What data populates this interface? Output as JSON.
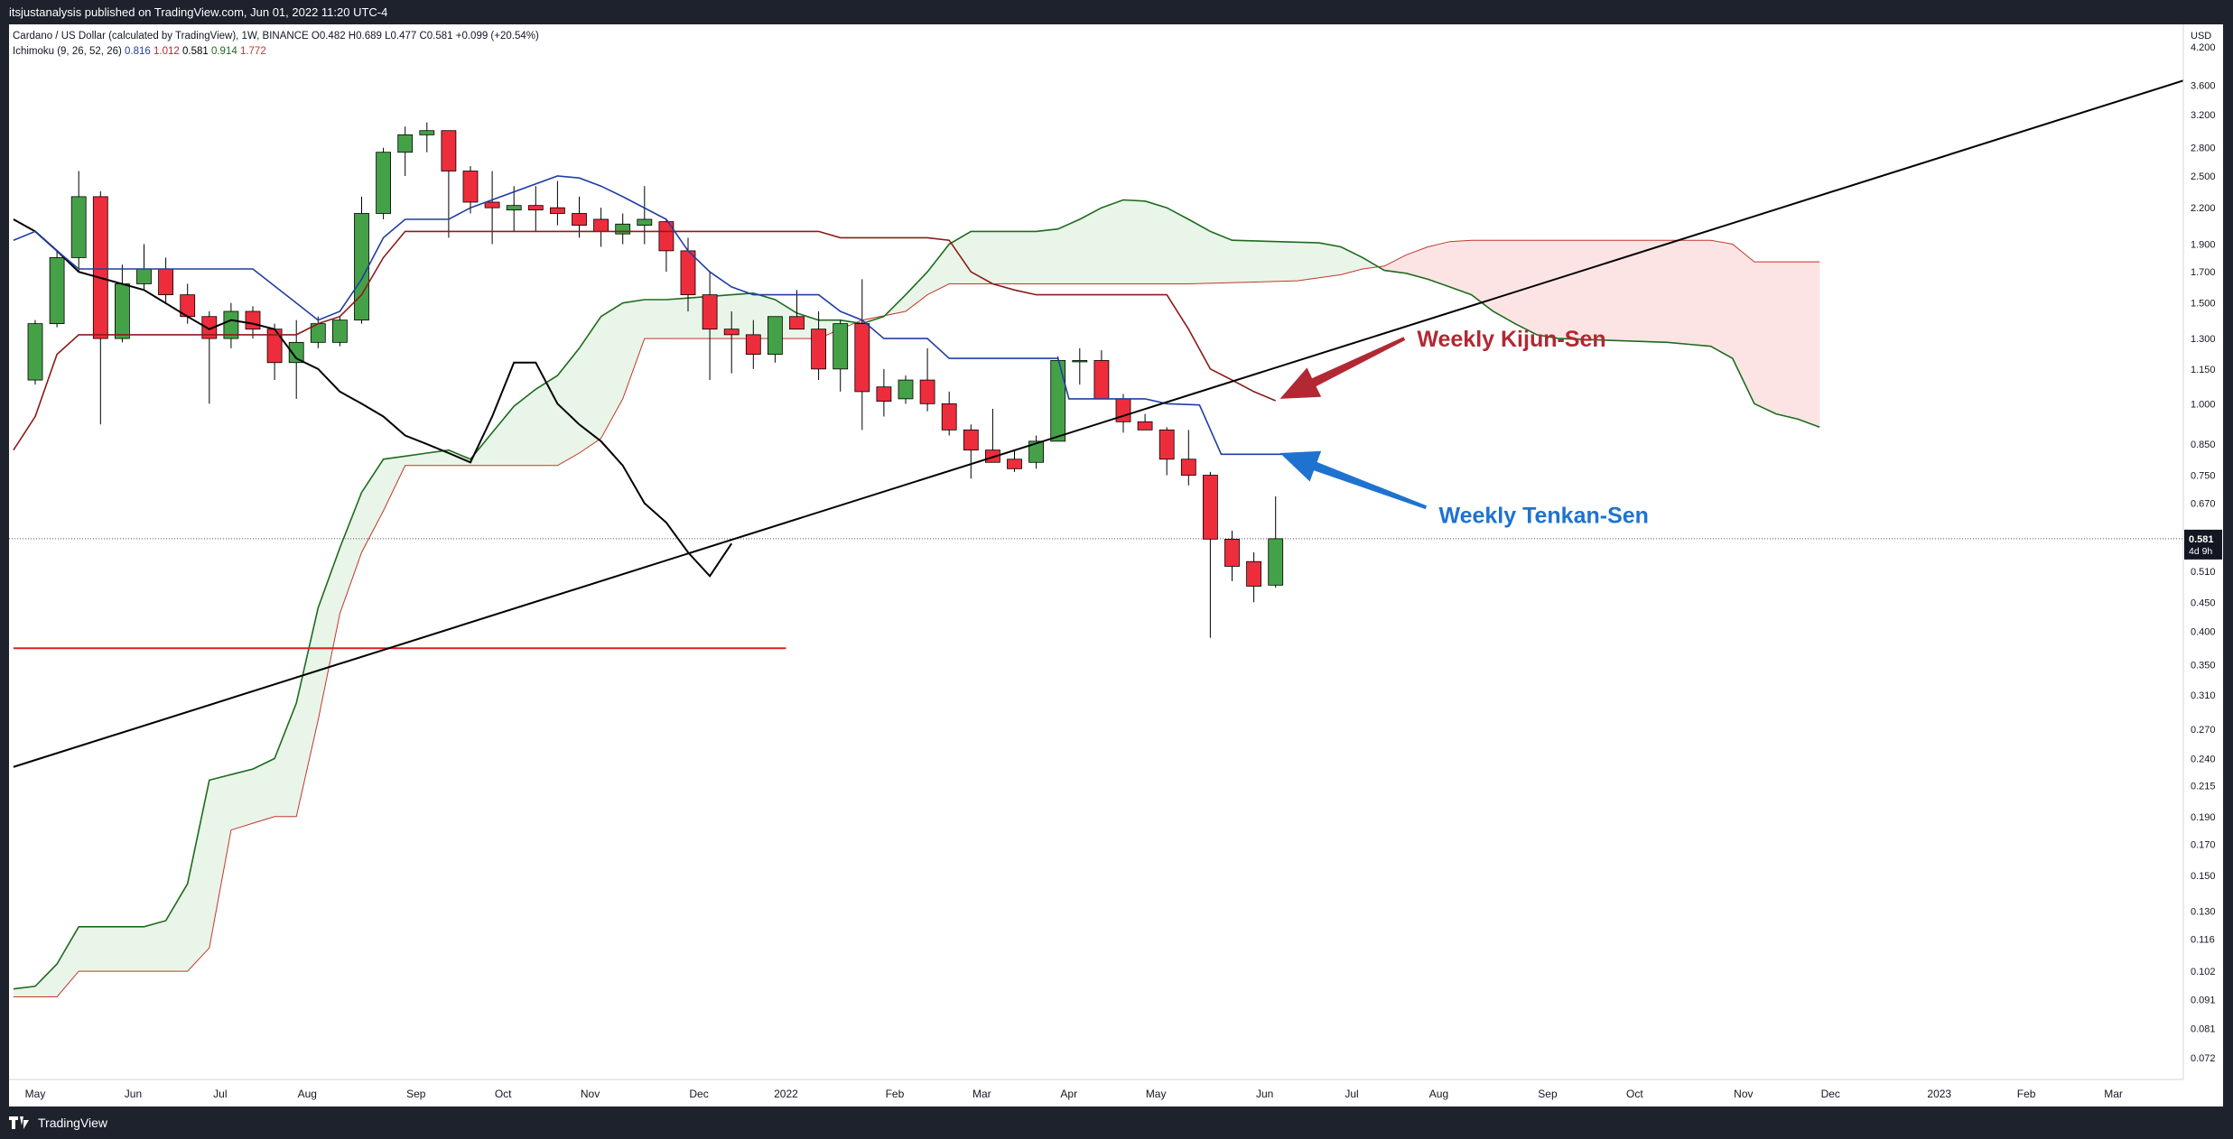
{
  "header": {
    "published_text": "itsjustanalysis published on TradingView.com, Jun 01, 2022 11:20 UTC-4"
  },
  "legend": {
    "symbol_line": "Cardano / US Dollar (calculated by TradingView), 1W, BINANCE",
    "ohlc": [
      {
        "label": "O",
        "value": "0.482"
      },
      {
        "label": "H",
        "value": "0.689"
      },
      {
        "label": "L",
        "value": "0.477"
      },
      {
        "label": "C",
        "value": "0.581"
      }
    ],
    "change": "+0.099 (+20.54%)",
    "indicator_name": "Ichimoku (9, 26, 52, 26)",
    "indicator_values": [
      {
        "value": "0.816",
        "color": "#1f3ea3"
      },
      {
        "value": "1.012",
        "color": "#b22833"
      },
      {
        "value": "0.581",
        "color": "#000000"
      },
      {
        "value": "0.914",
        "color": "#1e6b1e"
      },
      {
        "value": "1.772",
        "color": "#c0392b"
      }
    ]
  },
  "footer": {
    "brand": "TradingView"
  },
  "chart_data": {
    "type": "candlestick",
    "symbol": "Cardano / US Dollar",
    "interval": "1W",
    "exchange": "BINANCE",
    "currency_label": "USD",
    "y_scale": "log",
    "ylim": [
      0.066,
      4.6
    ],
    "price_ticks": [
      "4.200",
      "3.600",
      "3.200",
      "2.800",
      "2.500",
      "2.200",
      "1.900",
      "1.700",
      "1.500",
      "1.300",
      "1.150",
      "1.000",
      "0.850",
      "0.750",
      "0.670",
      "0.581",
      "0.510",
      "0.450",
      "0.400",
      "0.350",
      "0.310",
      "0.270",
      "0.240",
      "0.215",
      "0.190",
      "0.170",
      "0.150",
      "0.130",
      "0.116",
      "0.102",
      "0.091",
      "0.081",
      "0.072"
    ],
    "current_price": "0.581",
    "current_price_countdown": "4d 9h",
    "time_labels": [
      {
        "label": "May",
        "week": 0
      },
      {
        "label": "Jun",
        "week": 4.5
      },
      {
        "label": "Jul",
        "week": 8.5
      },
      {
        "label": "Aug",
        "week": 12.5
      },
      {
        "label": "Sep",
        "week": 17.5
      },
      {
        "label": "Oct",
        "week": 21.5
      },
      {
        "label": "Nov",
        "week": 25.5
      },
      {
        "label": "Dec",
        "week": 30.5
      },
      {
        "label": "2022",
        "week": 34.5
      },
      {
        "label": "Feb",
        "week": 39.5
      },
      {
        "label": "Mar",
        "week": 43.5
      },
      {
        "label": "Apr",
        "week": 47.5
      },
      {
        "label": "May",
        "week": 51.5
      },
      {
        "label": "Jun",
        "week": 56.5
      },
      {
        "label": "Jul",
        "week": 60.5
      },
      {
        "label": "Aug",
        "week": 64.5
      },
      {
        "label": "Sep",
        "week": 69.5
      },
      {
        "label": "Oct",
        "week": 73.5
      },
      {
        "label": "Nov",
        "week": 78.5
      },
      {
        "label": "Dec",
        "week": 82.5
      },
      {
        "label": "2023",
        "week": 87.5
      },
      {
        "label": "Feb",
        "week": 91.5
      },
      {
        "label": "Mar",
        "week": 95.5
      }
    ],
    "candles": [
      {
        "w": 0,
        "o": 1.1,
        "h": 1.4,
        "l": 1.08,
        "c": 1.38
      },
      {
        "w": 1,
        "o": 1.38,
        "h": 1.85,
        "l": 1.36,
        "c": 1.8
      },
      {
        "w": 2,
        "o": 1.8,
        "h": 2.55,
        "l": 1.7,
        "c": 2.3
      },
      {
        "w": 3,
        "o": 2.3,
        "h": 2.35,
        "l": 0.92,
        "c": 1.3
      },
      {
        "w": 4,
        "o": 1.3,
        "h": 1.75,
        "l": 1.28,
        "c": 1.62
      },
      {
        "w": 5,
        "o": 1.62,
        "h": 1.9,
        "l": 1.58,
        "c": 1.72
      },
      {
        "w": 6,
        "o": 1.72,
        "h": 1.8,
        "l": 1.5,
        "c": 1.55
      },
      {
        "w": 7,
        "o": 1.55,
        "h": 1.62,
        "l": 1.38,
        "c": 1.42
      },
      {
        "w": 8,
        "o": 1.42,
        "h": 1.45,
        "l": 1.0,
        "c": 1.3
      },
      {
        "w": 9,
        "o": 1.3,
        "h": 1.5,
        "l": 1.25,
        "c": 1.45
      },
      {
        "w": 10,
        "o": 1.45,
        "h": 1.48,
        "l": 1.3,
        "c": 1.35
      },
      {
        "w": 11,
        "o": 1.35,
        "h": 1.38,
        "l": 1.1,
        "c": 1.18
      },
      {
        "w": 12,
        "o": 1.18,
        "h": 1.4,
        "l": 1.02,
        "c": 1.28
      },
      {
        "w": 13,
        "o": 1.28,
        "h": 1.42,
        "l": 1.25,
        "c": 1.38
      },
      {
        "w": 14,
        "o": 1.28,
        "h": 1.42,
        "l": 1.26,
        "c": 1.4
      },
      {
        "w": 15,
        "o": 1.4,
        "h": 2.3,
        "l": 1.38,
        "c": 2.15
      },
      {
        "w": 16,
        "o": 2.15,
        "h": 2.8,
        "l": 2.1,
        "c": 2.75
      },
      {
        "w": 17,
        "o": 2.75,
        "h": 3.05,
        "l": 2.5,
        "c": 2.95
      },
      {
        "w": 18,
        "o": 2.95,
        "h": 3.1,
        "l": 2.75,
        "c": 3.0
      },
      {
        "w": 19,
        "o": 3.0,
        "h": 3.0,
        "l": 1.95,
        "c": 2.55
      },
      {
        "w": 20,
        "o": 2.55,
        "h": 2.6,
        "l": 2.15,
        "c": 2.25
      },
      {
        "w": 21,
        "o": 2.25,
        "h": 2.55,
        "l": 1.9,
        "c": 2.2
      },
      {
        "w": 22,
        "o": 2.18,
        "h": 2.4,
        "l": 2.0,
        "c": 2.22
      },
      {
        "w": 23,
        "o": 2.22,
        "h": 2.4,
        "l": 2.0,
        "c": 2.18
      },
      {
        "w": 24,
        "o": 2.2,
        "h": 2.45,
        "l": 2.05,
        "c": 2.15
      },
      {
        "w": 25,
        "o": 2.15,
        "h": 2.3,
        "l": 1.95,
        "c": 2.05
      },
      {
        "w": 26,
        "o": 2.1,
        "h": 2.2,
        "l": 1.88,
        "c": 2.0
      },
      {
        "w": 27,
        "o": 1.98,
        "h": 2.15,
        "l": 1.9,
        "c": 2.06
      },
      {
        "w": 28,
        "o": 2.05,
        "h": 2.4,
        "l": 1.9,
        "c": 2.1
      },
      {
        "w": 29,
        "o": 2.08,
        "h": 2.1,
        "l": 1.7,
        "c": 1.85
      },
      {
        "w": 30,
        "o": 1.85,
        "h": 1.95,
        "l": 1.45,
        "c": 1.55
      },
      {
        "w": 31,
        "o": 1.55,
        "h": 1.7,
        "l": 1.1,
        "c": 1.35
      },
      {
        "w": 32,
        "o": 1.35,
        "h": 1.45,
        "l": 1.13,
        "c": 1.32
      },
      {
        "w": 33,
        "o": 1.32,
        "h": 1.4,
        "l": 1.15,
        "c": 1.22
      },
      {
        "w": 34,
        "o": 1.22,
        "h": 1.4,
        "l": 1.18,
        "c": 1.42
      },
      {
        "w": 35,
        "o": 1.42,
        "h": 1.58,
        "l": 1.35,
        "c": 1.35
      },
      {
        "w": 36,
        "o": 1.35,
        "h": 1.45,
        "l": 1.1,
        "c": 1.15
      },
      {
        "w": 37,
        "o": 1.15,
        "h": 1.4,
        "l": 1.05,
        "c": 1.38
      },
      {
        "w": 38,
        "o": 1.38,
        "h": 1.65,
        "l": 0.9,
        "c": 1.05
      },
      {
        "w": 39,
        "o": 1.07,
        "h": 1.15,
        "l": 0.95,
        "c": 1.01
      },
      {
        "w": 40,
        "o": 1.02,
        "h": 1.12,
        "l": 1.0,
        "c": 1.1
      },
      {
        "w": 41,
        "o": 1.1,
        "h": 1.25,
        "l": 0.97,
        "c": 1.0
      },
      {
        "w": 42,
        "o": 1.0,
        "h": 1.05,
        "l": 0.88,
        "c": 0.9
      },
      {
        "w": 43,
        "o": 0.9,
        "h": 0.92,
        "l": 0.74,
        "c": 0.83
      },
      {
        "w": 44,
        "o": 0.83,
        "h": 0.98,
        "l": 0.8,
        "c": 0.79
      },
      {
        "w": 45,
        "o": 0.8,
        "h": 0.83,
        "l": 0.76,
        "c": 0.77
      },
      {
        "w": 46,
        "o": 0.79,
        "h": 0.88,
        "l": 0.77,
        "c": 0.86
      },
      {
        "w": 47,
        "o": 0.86,
        "h": 1.21,
        "l": 0.86,
        "c": 1.19
      },
      {
        "w": 48,
        "o": 1.19,
        "h": 1.25,
        "l": 1.08,
        "c": 1.19
      },
      {
        "w": 49,
        "o": 1.19,
        "h": 1.24,
        "l": 1.02,
        "c": 1.02
      },
      {
        "w": 50,
        "o": 1.02,
        "h": 1.04,
        "l": 0.89,
        "c": 0.93
      },
      {
        "w": 51,
        "o": 0.93,
        "h": 0.96,
        "l": 0.9,
        "c": 0.9
      },
      {
        "w": 52,
        "o": 0.9,
        "h": 0.91,
        "l": 0.75,
        "c": 0.8
      },
      {
        "w": 53,
        "o": 0.8,
        "h": 0.9,
        "l": 0.72,
        "c": 0.75
      },
      {
        "w": 54,
        "o": 0.75,
        "h": 0.76,
        "l": 0.39,
        "c": 0.58
      },
      {
        "w": 55,
        "o": 0.58,
        "h": 0.6,
        "l": 0.49,
        "c": 0.52
      },
      {
        "w": 56,
        "o": 0.53,
        "h": 0.55,
        "l": 0.45,
        "c": 0.48
      },
      {
        "w": 57,
        "o": 0.482,
        "h": 0.689,
        "l": 0.477,
        "c": 0.581
      }
    ],
    "tenkan_sen": [
      [
        -1,
        1.93
      ],
      [
        0,
        2.0
      ],
      [
        1,
        1.85
      ],
      [
        2,
        1.72
      ],
      [
        10,
        1.72
      ],
      [
        12,
        1.5
      ],
      [
        13,
        1.4
      ],
      [
        14,
        1.45
      ],
      [
        15,
        1.65
      ],
      [
        16,
        1.95
      ],
      [
        17,
        2.1
      ],
      [
        19,
        2.1
      ],
      [
        20,
        2.2
      ],
      [
        24,
        2.5
      ],
      [
        25,
        2.48
      ],
      [
        26,
        2.4
      ],
      [
        27,
        2.3
      ],
      [
        29,
        2.1
      ],
      [
        30,
        1.85
      ],
      [
        31,
        1.7
      ],
      [
        32,
        1.6
      ],
      [
        33,
        1.55
      ],
      [
        36,
        1.55
      ],
      [
        37,
        1.45
      ],
      [
        38,
        1.4
      ],
      [
        39,
        1.3
      ],
      [
        41,
        1.3
      ],
      [
        42,
        1.2
      ],
      [
        47,
        1.2
      ],
      [
        47.5,
        1.02
      ],
      [
        51,
        1.02
      ],
      [
        52,
        1.0
      ],
      [
        53.5,
        0.995
      ],
      [
        54.5,
        0.816
      ],
      [
        57.3,
        0.816
      ]
    ],
    "kijun_sen": [
      [
        -1,
        0.83
      ],
      [
        0,
        0.95
      ],
      [
        1,
        1.22
      ],
      [
        2,
        1.32
      ],
      [
        12,
        1.32
      ],
      [
        13,
        1.38
      ],
      [
        14,
        1.42
      ],
      [
        15,
        1.55
      ],
      [
        16,
        1.8
      ],
      [
        17,
        2.0
      ],
      [
        36,
        2.0
      ],
      [
        37,
        1.95
      ],
      [
        41,
        1.95
      ],
      [
        42,
        1.93
      ],
      [
        43,
        1.7
      ],
      [
        44,
        1.62
      ],
      [
        45,
        1.58
      ],
      [
        46,
        1.55
      ],
      [
        52,
        1.55
      ],
      [
        53,
        1.35
      ],
      [
        54,
        1.15
      ],
      [
        55,
        1.1
      ],
      [
        56,
        1.05
      ],
      [
        57,
        1.012
      ]
    ],
    "chikou_span": [
      [
        -1,
        2.1
      ],
      [
        0,
        2.0
      ],
      [
        1,
        1.85
      ],
      [
        2,
        1.7
      ],
      [
        5,
        1.58
      ],
      [
        7,
        1.42
      ],
      [
        8,
        1.35
      ],
      [
        9,
        1.4
      ],
      [
        10,
        1.38
      ],
      [
        11,
        1.35
      ],
      [
        12,
        1.2
      ],
      [
        13,
        1.15
      ],
      [
        14,
        1.05
      ],
      [
        15,
        1.0
      ],
      [
        16,
        0.95
      ],
      [
        17,
        0.88
      ],
      [
        18,
        0.85
      ],
      [
        19,
        0.82
      ],
      [
        20,
        0.79
      ],
      [
        21,
        0.95
      ],
      [
        22,
        1.18
      ],
      [
        23,
        1.18
      ],
      [
        24,
        1.0
      ],
      [
        25,
        0.92
      ],
      [
        26,
        0.86
      ],
      [
        27,
        0.78
      ],
      [
        28,
        0.67
      ],
      [
        29,
        0.62
      ],
      [
        30,
        0.55
      ],
      [
        31,
        0.5
      ],
      [
        32,
        0.57
      ]
    ],
    "senkou_span_a": [
      [
        -1,
        0.095
      ],
      [
        0,
        0.096
      ],
      [
        1,
        0.105
      ],
      [
        2,
        0.122
      ],
      [
        5,
        0.122
      ],
      [
        6,
        0.125
      ],
      [
        7,
        0.145
      ],
      [
        8,
        0.22
      ],
      [
        9,
        0.225
      ],
      [
        10,
        0.23
      ],
      [
        11,
        0.24
      ],
      [
        12,
        0.3
      ],
      [
        13,
        0.44
      ],
      [
        14,
        0.56
      ],
      [
        15,
        0.7
      ],
      [
        16,
        0.8
      ],
      [
        17,
        0.81
      ],
      [
        18,
        0.82
      ],
      [
        19,
        0.83
      ],
      [
        20,
        0.8
      ],
      [
        21,
        0.89
      ],
      [
        22,
        0.99
      ],
      [
        23,
        1.06
      ],
      [
        24,
        1.12
      ],
      [
        25,
        1.25
      ],
      [
        26,
        1.42
      ],
      [
        27,
        1.5
      ],
      [
        28,
        1.52
      ],
      [
        29,
        1.52
      ],
      [
        30,
        1.53
      ],
      [
        31,
        1.54
      ],
      [
        32,
        1.55
      ],
      [
        33,
        1.56
      ],
      [
        34,
        1.52
      ],
      [
        35,
        1.44
      ],
      [
        36,
        1.4
      ],
      [
        37,
        1.4
      ],
      [
        38,
        1.38
      ],
      [
        39,
        1.42
      ],
      [
        40,
        1.55
      ],
      [
        41,
        1.7
      ],
      [
        42,
        1.9
      ],
      [
        43,
        2.0
      ],
      [
        46,
        2.0
      ],
      [
        47,
        2.02
      ],
      [
        48,
        2.1
      ],
      [
        49,
        2.2
      ],
      [
        50,
        2.27
      ],
      [
        51,
        2.26
      ],
      [
        52,
        2.2
      ],
      [
        53,
        2.1
      ],
      [
        54,
        2.0
      ],
      [
        55,
        1.93
      ],
      [
        59,
        1.91
      ],
      [
        60,
        1.88
      ],
      [
        61,
        1.8
      ],
      [
        62,
        1.71
      ],
      [
        63,
        1.69
      ],
      [
        64,
        1.65
      ],
      [
        65,
        1.6
      ],
      [
        66,
        1.55
      ],
      [
        67,
        1.45
      ],
      [
        68,
        1.38
      ],
      [
        69,
        1.32
      ],
      [
        70,
        1.3
      ],
      [
        75,
        1.28
      ],
      [
        76,
        1.27
      ],
      [
        77,
        1.26
      ],
      [
        78,
        1.2
      ],
      [
        79,
        1.0
      ],
      [
        80,
        0.96
      ],
      [
        81,
        0.94
      ],
      [
        82,
        0.91
      ]
    ],
    "senkou_span_b": [
      [
        -1,
        0.092
      ],
      [
        1,
        0.092
      ],
      [
        2,
        0.102
      ],
      [
        7,
        0.102
      ],
      [
        8,
        0.112
      ],
      [
        9,
        0.18
      ],
      [
        10,
        0.185
      ],
      [
        11,
        0.19
      ],
      [
        12,
        0.19
      ],
      [
        13,
        0.28
      ],
      [
        14,
        0.43
      ],
      [
        15,
        0.55
      ],
      [
        16,
        0.65
      ],
      [
        17,
        0.78
      ],
      [
        24,
        0.78
      ],
      [
        25,
        0.82
      ],
      [
        26,
        0.87
      ],
      [
        27,
        1.02
      ],
      [
        28,
        1.3
      ],
      [
        36,
        1.3
      ],
      [
        37,
        1.35
      ],
      [
        38,
        1.4
      ],
      [
        40,
        1.45
      ],
      [
        41,
        1.55
      ],
      [
        42,
        1.62
      ],
      [
        45,
        1.62
      ],
      [
        53,
        1.62
      ],
      [
        58,
        1.64
      ],
      [
        59,
        1.66
      ],
      [
        60,
        1.68
      ],
      [
        61,
        1.72
      ],
      [
        62,
        1.74
      ],
      [
        63,
        1.82
      ],
      [
        64,
        1.88
      ],
      [
        65,
        1.92
      ],
      [
        66,
        1.93
      ],
      [
        77,
        1.93
      ],
      [
        78,
        1.9
      ],
      [
        79,
        1.77
      ],
      [
        82,
        1.77
      ]
    ],
    "trendline": {
      "points": [
        [
          -1,
          0.232
        ],
        [
          99.5,
          3.75
        ]
      ]
    },
    "horizontal_line": {
      "price": 0.374,
      "from_week": -1,
      "to_week": 34.5
    },
    "annotations": [
      {
        "text": "Weekly Kijun-Sen",
        "color": "#b22833",
        "at_week": 63.5,
        "at_price": 1.3,
        "arrow_to_week": 57.2,
        "arrow_to_price": 1.02
      },
      {
        "text": "Weekly Tenkan-Sen",
        "color": "#1e73d0",
        "at_week": 64.5,
        "at_price": 0.64,
        "arrow_to_week": 57.2,
        "arrow_to_price": 0.82
      }
    ],
    "colors": {
      "up_candle": "#45a148",
      "down_candle": "#ee2d3c",
      "tenkan": "#1f3ea3",
      "kijun": "#8b1a1a",
      "chikou": "#000000",
      "span_a": "#1e6b1e",
      "span_b": "#c0392b",
      "cloud_up": "#e8f5e8",
      "cloud_down": "#fde4e4",
      "trendline": "#000000",
      "hline": "#e02020"
    }
  }
}
